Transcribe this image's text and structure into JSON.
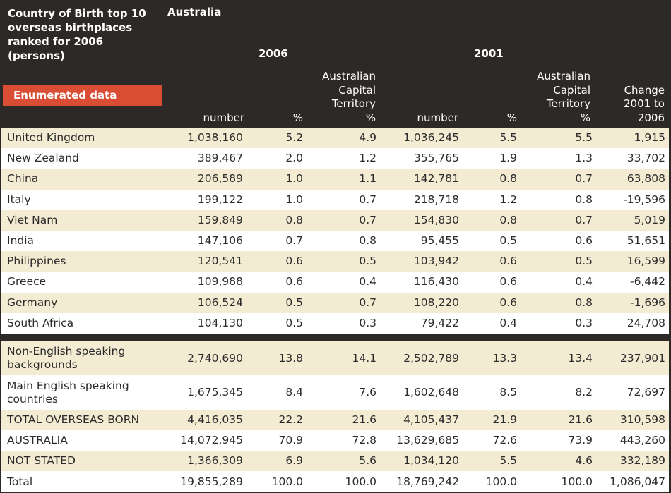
{
  "header": {
    "title": "Country of Birth top 10 overseas birthplaces ranked for 2006 (persons)",
    "region": "Australia",
    "year_2006": "2006",
    "year_2001": "2001",
    "enumerated_label": "Enumerated data",
    "columns": [
      [
        "number"
      ],
      [
        "%"
      ],
      [
        "Australian",
        "Capital",
        "Territory",
        "%"
      ],
      [
        "number"
      ],
      [
        "%"
      ],
      [
        "Australian",
        "Capital",
        "Territory",
        "%"
      ],
      [
        "Change",
        "2001 to",
        "2006"
      ]
    ]
  },
  "top10": [
    [
      "United Kingdom",
      "1,038,160",
      "5.2",
      "4.9",
      "1,036,245",
      "5.5",
      "5.5",
      "1,915"
    ],
    [
      "New Zealand",
      "389,467",
      "2.0",
      "1.2",
      "355,765",
      "1.9",
      "1.3",
      "33,702"
    ],
    [
      "China",
      "206,589",
      "1.0",
      "1.1",
      "142,781",
      "0.8",
      "0.7",
      "63,808"
    ],
    [
      "Italy",
      "199,122",
      "1.0",
      "0.7",
      "218,718",
      "1.2",
      "0.8",
      "-19,596"
    ],
    [
      "Viet Nam",
      "159,849",
      "0.8",
      "0.7",
      "154,830",
      "0.8",
      "0.7",
      "5,019"
    ],
    [
      "India",
      "147,106",
      "0.7",
      "0.8",
      "95,455",
      "0.5",
      "0.6",
      "51,651"
    ],
    [
      "Philippines",
      "120,541",
      "0.6",
      "0.5",
      "103,942",
      "0.6",
      "0.5",
      "16,599"
    ],
    [
      "Greece",
      "109,988",
      "0.6",
      "0.4",
      "116,430",
      "0.6",
      "0.4",
      "-6,442"
    ],
    [
      "Germany",
      "106,524",
      "0.5",
      "0.7",
      "108,220",
      "0.6",
      "0.8",
      "-1,696"
    ],
    [
      "South Africa",
      "104,130",
      "0.5",
      "0.3",
      "79,422",
      "0.4",
      "0.3",
      "24,708"
    ]
  ],
  "totals": [
    [
      "Non-English speaking backgrounds",
      "2,740,690",
      "13.8",
      "14.1",
      "2,502,789",
      "13.3",
      "13.4",
      "237,901"
    ],
    [
      "Main English speaking countries",
      "1,675,345",
      "8.4",
      "7.6",
      "1,602,648",
      "8.5",
      "8.2",
      "72,697"
    ],
    [
      "TOTAL OVERSEAS BORN",
      "4,416,035",
      "22.2",
      "21.6",
      "4,105,437",
      "21.9",
      "21.6",
      "310,598"
    ],
    [
      "AUSTRALIA",
      "14,072,945",
      "70.9",
      "72.8",
      "13,629,685",
      "72.6",
      "73.9",
      "443,260"
    ],
    [
      "NOT STATED",
      "1,366,309",
      "6.9",
      "5.6",
      "1,034,120",
      "5.5",
      "4.6",
      "332,189"
    ],
    [
      "Total",
      "19,855,289",
      "100.0",
      "100.0",
      "18,769,242",
      "100.0",
      "100.0",
      "1,086,047"
    ]
  ]
}
